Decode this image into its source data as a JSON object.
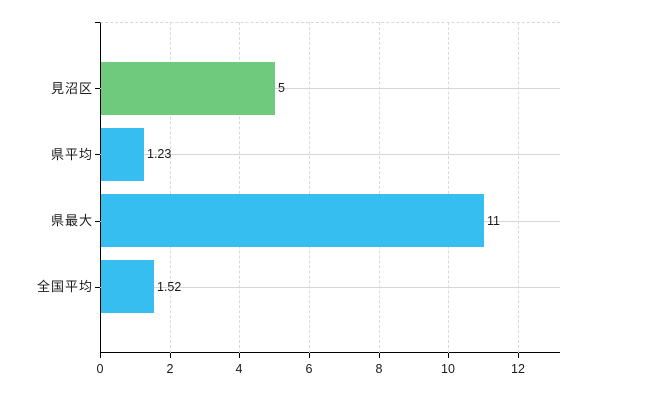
{
  "chart_data": {
    "type": "bar",
    "orientation": "horizontal",
    "title": "",
    "xlabel": "",
    "ylabel": "",
    "categories": [
      "見沼区",
      "県平均",
      "県最大",
      "全国平均"
    ],
    "values": [
      5,
      1.23,
      11,
      1.52
    ],
    "value_labels": [
      "5",
      "1.23",
      "11",
      "1.52"
    ],
    "series": [
      {
        "name": "",
        "values": [
          5,
          1.23,
          11,
          1.52
        ]
      }
    ],
    "bar_colors": [
      "#6fca7e",
      "#36bef0",
      "#36bef0",
      "#36bef0"
    ],
    "xlim": [
      0,
      13.2
    ],
    "xticks": [
      0,
      2,
      4,
      6,
      8,
      10,
      12
    ],
    "grid": true,
    "grid_vertical_style": "dashed",
    "grid_horizontal_style": "solid",
    "legend": false,
    "colors": {
      "background": "#ffffff",
      "axis": "#000000",
      "grid_horizontal": "#d6d6d6",
      "grid_vertical": "#d9d9d9",
      "category_text": "#1a1a1a",
      "tick_text": "#1a1a1a",
      "value_text": "#1a1a1a",
      "bar_green": "#6fca7e",
      "bar_blue": "#36bef0"
    }
  }
}
